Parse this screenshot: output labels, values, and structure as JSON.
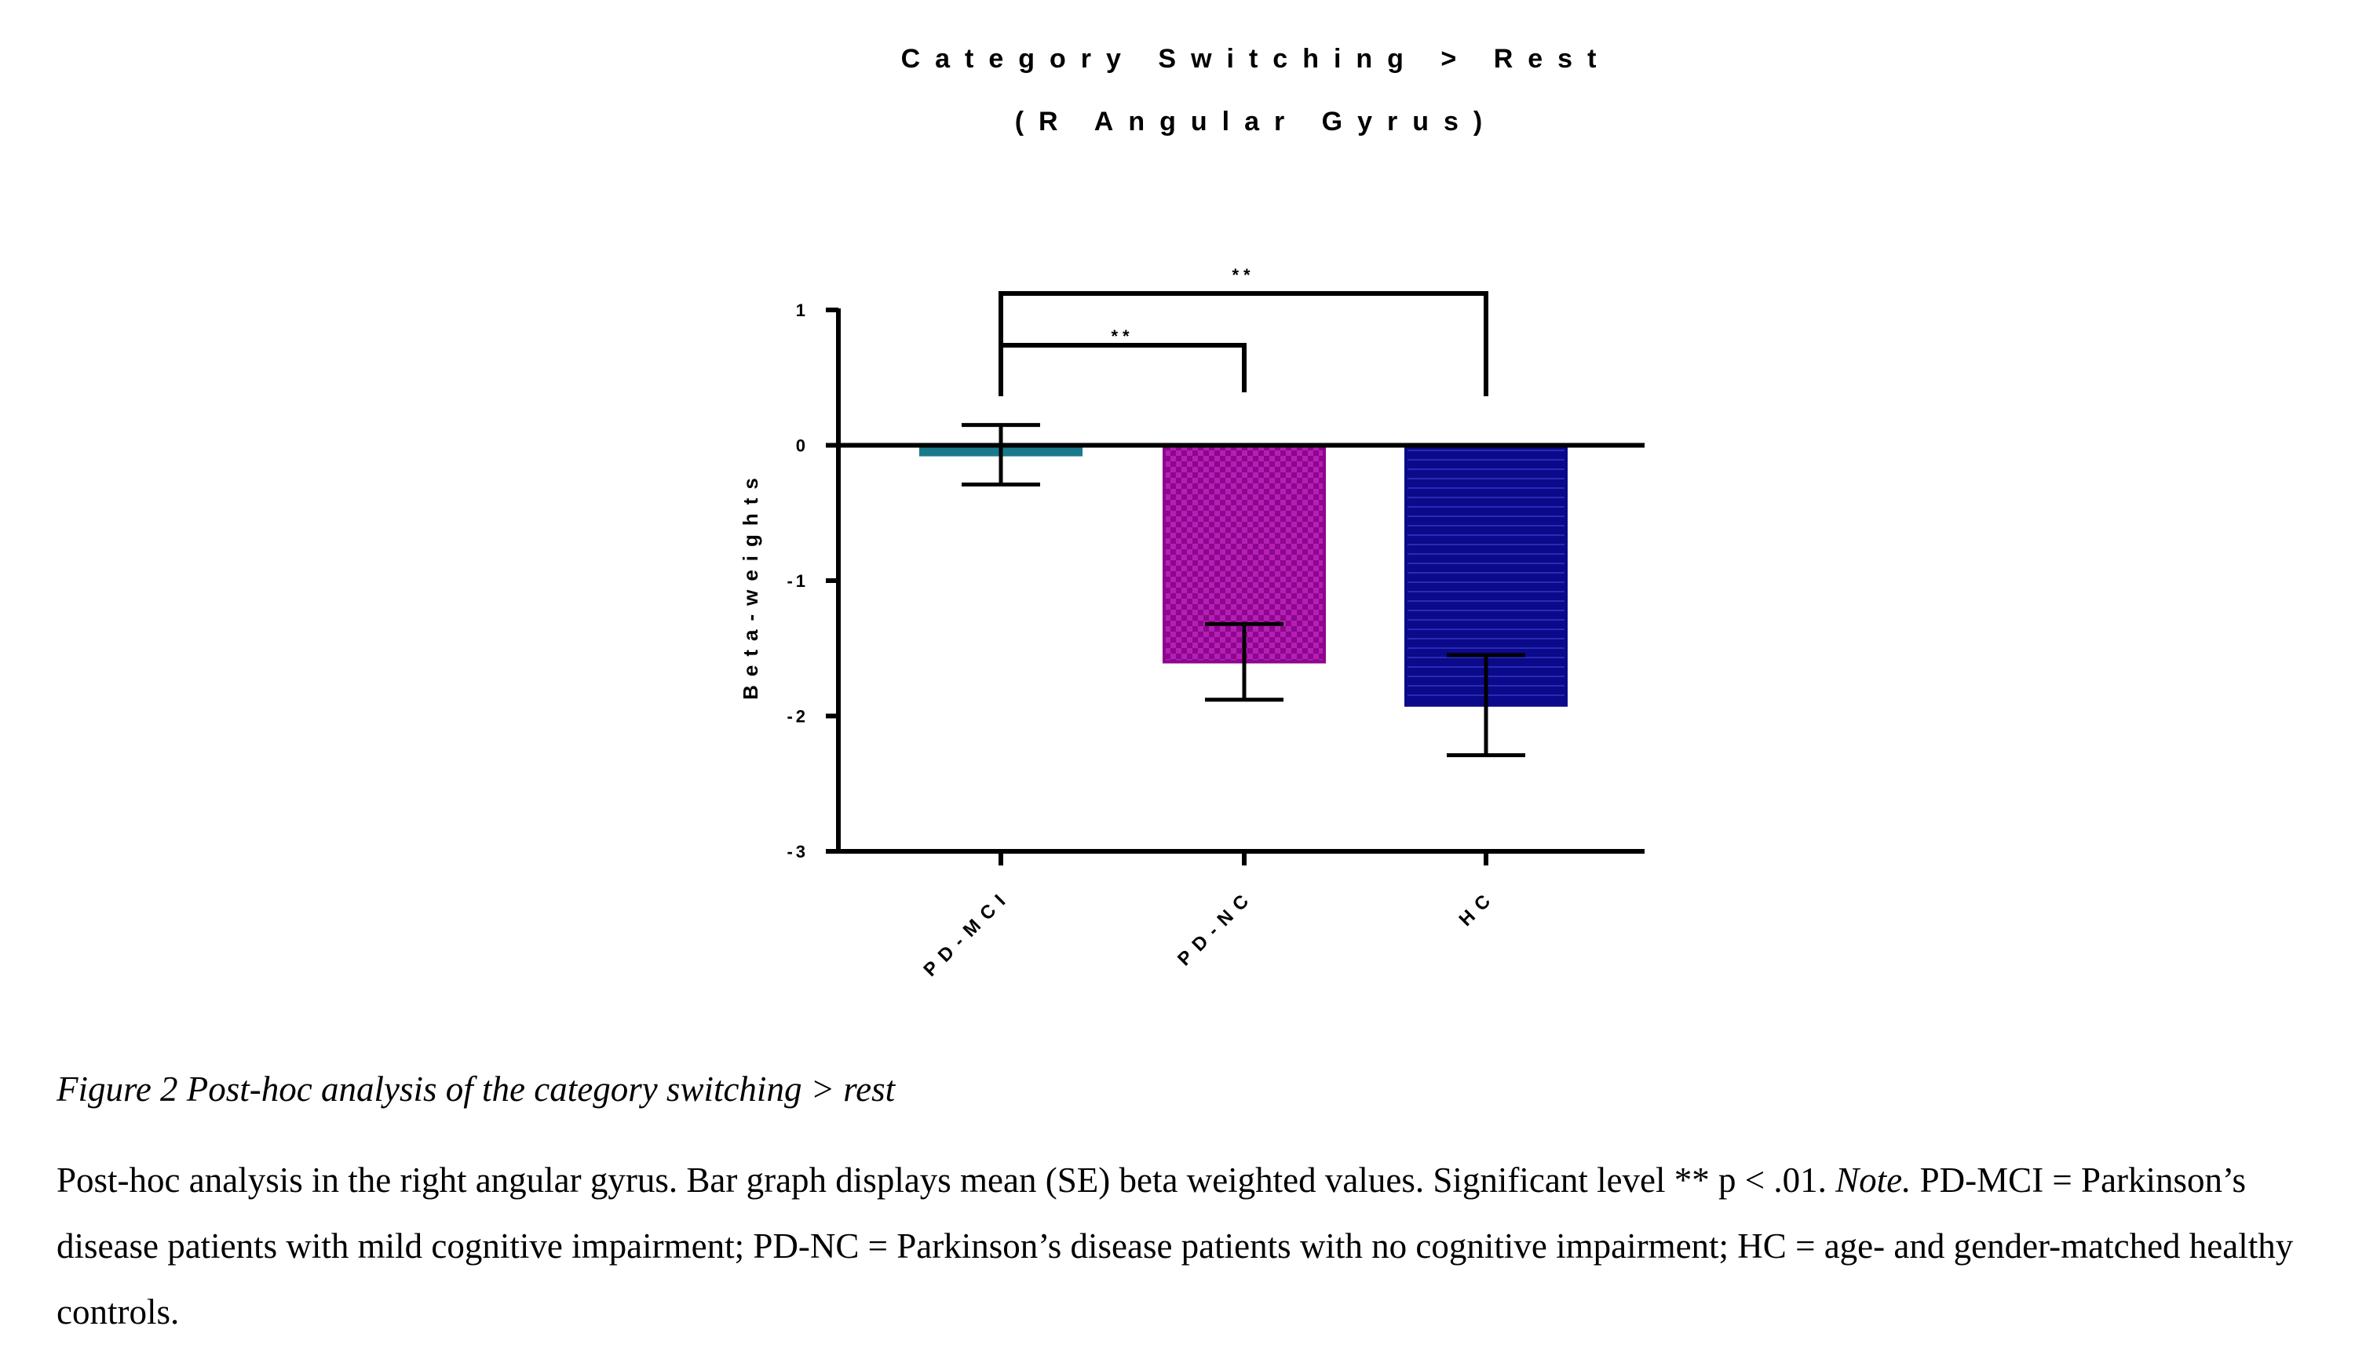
{
  "chart_data": {
    "type": "bar",
    "title": "Category Switching > Rest",
    "subtitle": "(R Angular Gyrus)",
    "xlabel": "",
    "ylabel": "Beta-weights",
    "categories": [
      "PD-MCI",
      "PD-NC",
      "HC"
    ],
    "values": [
      -0.07,
      -1.6,
      -1.92
    ],
    "error": [
      0.22,
      0.28,
      0.37
    ],
    "ylim": [
      -3,
      1
    ],
    "yticks": [
      1,
      0,
      -1,
      -2,
      -3
    ],
    "yticklabels": [
      "1",
      "0",
      "-1",
      "-2",
      "-3"
    ],
    "colors": [
      "#1a7a8c",
      "#8e058e",
      "#0a0a8a"
    ],
    "patterns": [
      "solid",
      "checker",
      "horizontal-lines"
    ],
    "significance": [
      {
        "from": "PD-MCI",
        "to": "PD-NC",
        "label": "**"
      },
      {
        "from": "PD-MCI",
        "to": "HC",
        "label": "**"
      }
    ],
    "grid": false,
    "legend": "none"
  },
  "caption": {
    "title": "Figure 2 Post-hoc analysis of the category switching > rest",
    "body_before_note": "Post-hoc analysis in the right angular gyrus. Bar graph displays mean (SE) beta weighted values. Significant level ** p < .01. ",
    "note_label": "Note.",
    "body_after_note": " PD-MCI = Parkinson’s disease patients with mild cognitive impairment; PD-NC = Parkinson’s disease patients with no cognitive impairment; HC = age- and gender-matched healthy controls."
  }
}
